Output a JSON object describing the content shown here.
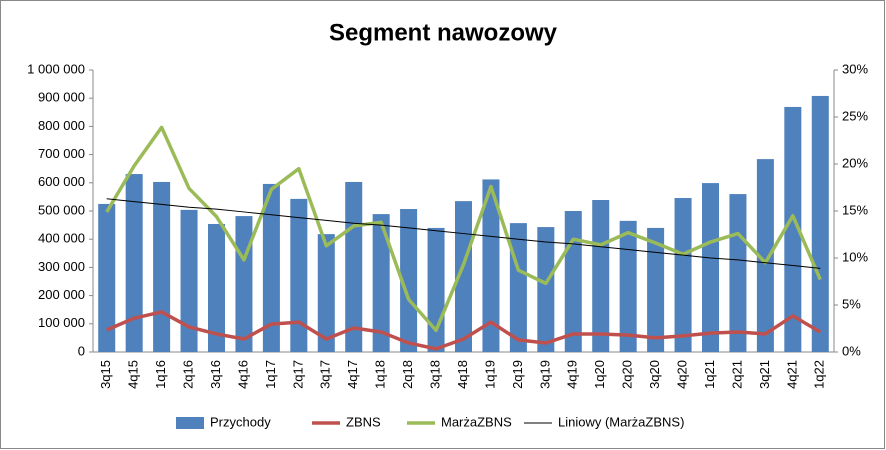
{
  "chart_data": {
    "type": "bar",
    "title": "Segment nawozowy",
    "categories": [
      "3q15",
      "4q15",
      "1q16",
      "2q16",
      "3q16",
      "4q16",
      "1q17",
      "2q17",
      "3q17",
      "4q17",
      "1q18",
      "2q18",
      "3q18",
      "4q18",
      "1q19",
      "2q19",
      "3q19",
      "4q19",
      "1q20",
      "2q20",
      "3q20",
      "4q20",
      "1q21",
      "2q21",
      "3q21",
      "4q21",
      "1q22"
    ],
    "series": [
      {
        "name": "Przychody",
        "type": "bar",
        "color": "#4f81bd",
        "values": [
          525000,
          631000,
          603000,
          504000,
          454000,
          482000,
          596000,
          543000,
          418000,
          603000,
          489000,
          507000,
          440000,
          535000,
          612000,
          457000,
          443000,
          500000,
          539000,
          465000,
          440000,
          546000,
          599000,
          560000,
          684000,
          869000,
          908000
        ]
      },
      {
        "name": "ZBNS",
        "type": "line",
        "color": "#c0504d",
        "values": [
          78000,
          120000,
          142000,
          89000,
          64000,
          46000,
          99000,
          106000,
          46000,
          85000,
          71000,
          32000,
          11000,
          46000,
          106000,
          43000,
          32000,
          64000,
          64000,
          60000,
          50000,
          57000,
          67000,
          71000,
          64000,
          128000,
          71000
        ]
      },
      {
        "name": "MarżaZBNS",
        "type": "line",
        "axis": "y2",
        "color": "#9bbb59",
        "values": [
          14.9,
          19.8,
          23.9,
          17.4,
          14.4,
          9.8,
          17.3,
          19.5,
          11.3,
          13.4,
          13.8,
          5.6,
          2.3,
          9.3,
          17.6,
          8.7,
          7.3,
          12.0,
          11.4,
          12.7,
          11.6,
          10.4,
          11.7,
          12.6,
          9.5,
          14.5,
          7.7
        ]
      },
      {
        "name": "Liniowy (MarżaZBNS)",
        "type": "line",
        "axis": "y2",
        "color": "#000000",
        "values": [
          16.3,
          16.0,
          15.7,
          15.4,
          15.2,
          14.9,
          14.6,
          14.3,
          14.0,
          13.7,
          13.5,
          13.2,
          12.9,
          12.6,
          12.3,
          12.0,
          11.7,
          11.5,
          11.2,
          10.9,
          10.6,
          10.3,
          10.0,
          9.8,
          9.5,
          9.2,
          8.9
        ]
      }
    ],
    "ylim": [
      0,
      1000000
    ],
    "yticks": [
      0,
      {
        "value": 100000,
        "label": "100 000"
      },
      {
        "value": 200000,
        "label": "200 000"
      },
      {
        "value": 300000,
        "label": "300 000"
      },
      {
        "value": 400000,
        "label": "400 000"
      },
      {
        "value": 500000,
        "label": "500 000"
      },
      {
        "value": 600000,
        "label": "600 000"
      },
      {
        "value": 700000,
        "label": "700 000"
      },
      {
        "value": 800000,
        "label": "800 000"
      },
      {
        "value": 900000,
        "label": "900 000"
      },
      {
        "value": 1000000,
        "label": "1 000 000"
      }
    ],
    "y2lim": [
      0,
      30
    ],
    "y2ticks": [
      {
        "value": 0,
        "label": "0%"
      },
      {
        "value": 5,
        "label": "5%"
      },
      {
        "value": 10,
        "label": "10%"
      },
      {
        "value": 15,
        "label": "15%"
      },
      {
        "value": 20,
        "label": "20%"
      },
      {
        "value": 25,
        "label": "25%"
      },
      {
        "value": 30,
        "label": "30%"
      }
    ],
    "grid": false,
    "legend": "bottom"
  }
}
